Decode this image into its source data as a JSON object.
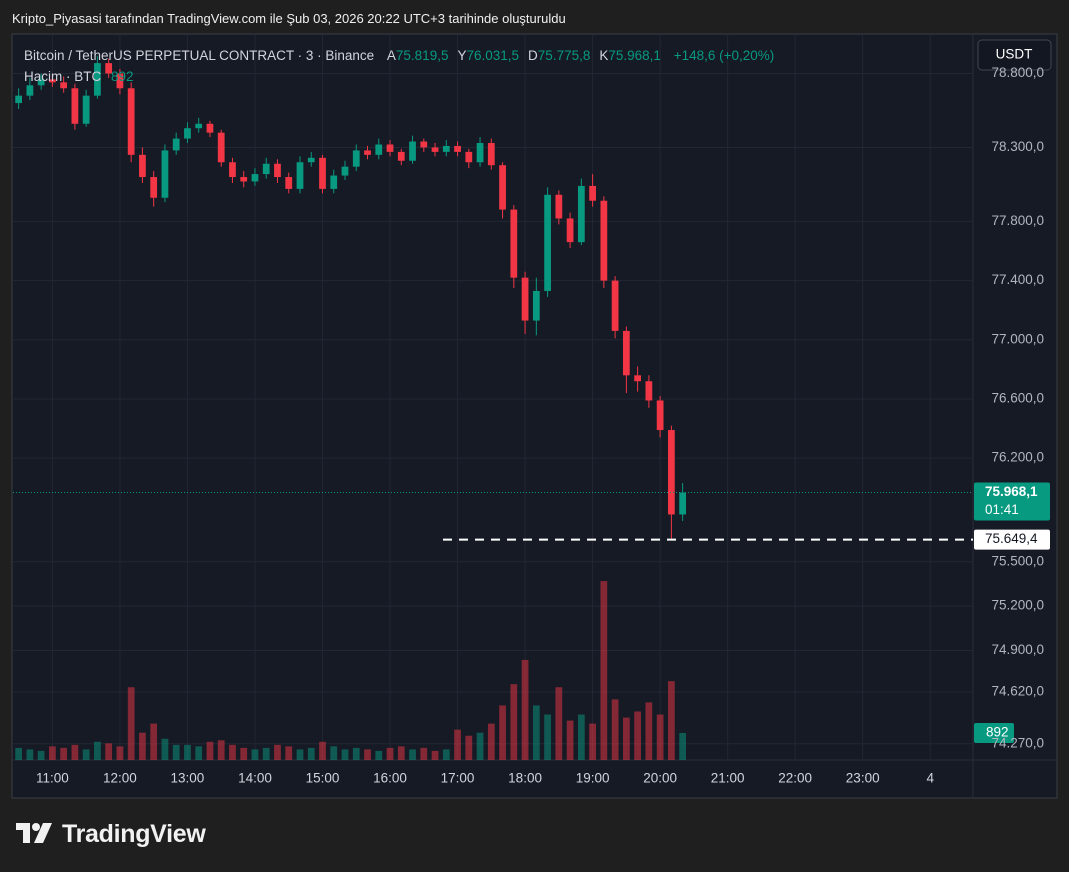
{
  "header": {
    "caption": "Kripto_Piyasasi tarafından TradingView.com ile Şub 03, 2026 20:22 UTC+3 tarihinde oluşturuldu",
    "logo": "TradingView"
  },
  "chart_data": {
    "type": "candlestick",
    "symbol": "Bitcoin / TetherUS PERPETUAL CONTRACT · 3 · Binance",
    "ohlc_legend": [
      {
        "label": "A",
        "value": "75.819,5"
      },
      {
        "label": "Y",
        "value": "76.031,5"
      },
      {
        "label": "D",
        "value": "75.775,8"
      },
      {
        "label": "K",
        "value": "75.968,1"
      }
    ],
    "change": "+148,6 (+0,20%)",
    "volume_legend": {
      "label": "Hacim · BTC",
      "value": "892"
    },
    "currency": "USDT",
    "up_color": "#089981",
    "down_color": "#f23645",
    "x": [
      630,
      640,
      650,
      660,
      670,
      680,
      690,
      700,
      710,
      720,
      730,
      740,
      750,
      760,
      770,
      780,
      790,
      800,
      810,
      820,
      830,
      840,
      850,
      860,
      870,
      880,
      890,
      900,
      910,
      920,
      930,
      940,
      950,
      960,
      970,
      980,
      990,
      1000,
      1010,
      1020,
      1030,
      1040,
      1050,
      1060,
      1070,
      1080,
      1090,
      1100,
      1110,
      1120,
      1130,
      1140,
      1150,
      1160,
      1170,
      1180,
      1190,
      1200,
      1210,
      1220
    ],
    "open": [
      78600,
      78650,
      78720,
      78760,
      78740,
      78700,
      78460,
      78650,
      78870,
      78800,
      78700,
      78250,
      78100,
      77960,
      78280,
      78360,
      78430,
      78460,
      78400,
      78200,
      78100,
      78070,
      78120,
      78190,
      78100,
      78020,
      78200,
      78230,
      78020,
      78110,
      78170,
      78280,
      78250,
      78320,
      78270,
      78210,
      78340,
      78300,
      78270,
      78310,
      78270,
      78200,
      78330,
      78180,
      77880,
      77420,
      77130,
      77330,
      77980,
      77820,
      77660,
      78040,
      77940,
      77400,
      77060,
      76760,
      76720,
      76590,
      76390,
      75819.5
    ],
    "high": [
      78700,
      78770,
      78800,
      78790,
      78780,
      78730,
      78690,
      78920,
      78900,
      78830,
      78740,
      78300,
      78140,
      78320,
      78400,
      78470,
      78500,
      78480,
      78420,
      78230,
      78140,
      78160,
      78230,
      78220,
      78130,
      78240,
      78270,
      78250,
      78150,
      78210,
      78320,
      78310,
      78360,
      78350,
      78290,
      78380,
      78360,
      78330,
      78350,
      78340,
      78290,
      78370,
      78360,
      78200,
      77910,
      77460,
      77420,
      78030,
      78010,
      77860,
      78090,
      78120,
      77970,
      77430,
      77090,
      76820,
      76760,
      76620,
      76420,
      76031.5
    ],
    "low": [
      78560,
      78620,
      78690,
      78710,
      78670,
      78420,
      78440,
      78630,
      78770,
      78660,
      78200,
      78060,
      77900,
      77930,
      78250,
      78330,
      78400,
      78370,
      78170,
      78060,
      78030,
      78040,
      78090,
      78060,
      77990,
      77990,
      78170,
      77990,
      77990,
      78080,
      78140,
      78220,
      78220,
      78240,
      78180,
      78190,
      78270,
      78240,
      78240,
      78240,
      78160,
      78170,
      78150,
      77820,
      77350,
      77040,
      77030,
      77290,
      77780,
      77620,
      77640,
      77900,
      77350,
      77010,
      76640,
      76650,
      76540,
      76340,
      75649.4,
      75775.8
    ],
    "close": [
      78650,
      78720,
      78760,
      78740,
      78700,
      78460,
      78650,
      78870,
      78800,
      78700,
      78250,
      78100,
      77960,
      78280,
      78360,
      78430,
      78460,
      78400,
      78200,
      78100,
      78070,
      78120,
      78190,
      78100,
      78020,
      78200,
      78230,
      78020,
      78110,
      78170,
      78280,
      78250,
      78320,
      78270,
      78210,
      78340,
      78300,
      78270,
      78310,
      78270,
      78200,
      78330,
      78180,
      77880,
      77420,
      77130,
      77330,
      77980,
      77820,
      77660,
      78040,
      77940,
      77400,
      77060,
      76760,
      76720,
      76590,
      76390,
      75819.5,
      75968.1
    ],
    "volume": [
      400,
      350,
      300,
      450,
      400,
      500,
      350,
      600,
      550,
      450,
      2400,
      900,
      1200,
      700,
      500,
      500,
      450,
      600,
      650,
      500,
      400,
      350,
      400,
      500,
      450,
      350,
      400,
      600,
      450,
      350,
      400,
      350,
      300,
      400,
      450,
      350,
      400,
      300,
      350,
      1000,
      800,
      900,
      1200,
      1800,
      2500,
      3300,
      1800,
      1500,
      2400,
      1300,
      1500,
      1200,
      5900,
      2000,
      1400,
      1600,
      1900,
      1500,
      2600,
      892
    ],
    "volume_lim": [
      0,
      6100
    ],
    "xlim": [
      625,
      1478
    ],
    "xticks": [
      {
        "value": 660,
        "label": "11:00"
      },
      {
        "value": 720,
        "label": "12:00"
      },
      {
        "value": 780,
        "label": "13:00"
      },
      {
        "value": 840,
        "label": "14:00"
      },
      {
        "value": 900,
        "label": "15:00"
      },
      {
        "value": 960,
        "label": "16:00"
      },
      {
        "value": 1020,
        "label": "17:00"
      },
      {
        "value": 1080,
        "label": "18:00"
      },
      {
        "value": 1140,
        "label": "19:00"
      },
      {
        "value": 1200,
        "label": "20:00"
      },
      {
        "value": 1260,
        "label": "21:00"
      },
      {
        "value": 1320,
        "label": "22:00"
      },
      {
        "value": 1380,
        "label": "23:00"
      },
      {
        "value": 1440,
        "label": "4"
      }
    ],
    "ylim": [
      74160,
      79060
    ],
    "yticks": [
      {
        "value": 78800,
        "label": "78.800,0"
      },
      {
        "value": 78300,
        "label": "78.300,0"
      },
      {
        "value": 77800,
        "label": "77.800,0"
      },
      {
        "value": 77400,
        "label": "77.400,0"
      },
      {
        "value": 77000,
        "label": "77.000,0"
      },
      {
        "value": 76600,
        "label": "76.600,0"
      },
      {
        "value": 76200,
        "label": "76.200,0"
      },
      {
        "value": 75500,
        "label": "75.500,0"
      },
      {
        "value": 75200,
        "label": "75.200,0"
      },
      {
        "value": 74900,
        "label": "74.900,0"
      },
      {
        "value": 74620,
        "label": "74.620,0"
      },
      {
        "value": 74270,
        "label": "74.270,0"
      }
    ],
    "grid": true,
    "last_price_label": "75.968,1",
    "countdown": "01:41",
    "hline": {
      "value": 75649.4,
      "label": "75.649,4"
    }
  }
}
